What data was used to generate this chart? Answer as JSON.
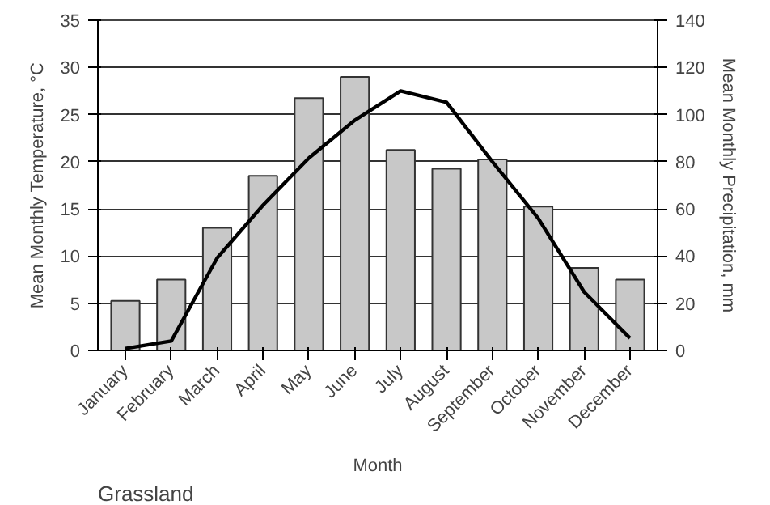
{
  "chart_data": {
    "type": "bar",
    "xlabel": "Month",
    "ylabel": "Mean Monthly Temperature, °C",
    "y2label": "Mean Monthly Precipitation, mm",
    "categories": [
      "January",
      "February",
      "March",
      "April",
      "May",
      "June",
      "July",
      "August",
      "September",
      "October",
      "November",
      "December"
    ],
    "series": [
      {
        "axis": "y2",
        "color": "#c8c8c8",
        "values": [
          21,
          30,
          52,
          74,
          107,
          116,
          85,
          77,
          81,
          61,
          35,
          30
        ]
      },
      {
        "type": "line",
        "axis": "y",
        "color": "#000000",
        "values": [
          0.2,
          1,
          9.8,
          15.4,
          20.4,
          24.4,
          27.5,
          26.3,
          20,
          14,
          6.2,
          1.3
        ]
      }
    ],
    "ylim": [
      0,
      35
    ],
    "yticks": [
      0,
      5,
      10,
      15,
      20,
      25,
      30,
      35
    ],
    "y2lim": [
      0,
      140
    ],
    "y2ticks": [
      0,
      20,
      40,
      60,
      80,
      100,
      120,
      140
    ],
    "grid": "y",
    "marker": "none",
    "line_style": "solid",
    "annotations": [
      "Grassland"
    ]
  }
}
